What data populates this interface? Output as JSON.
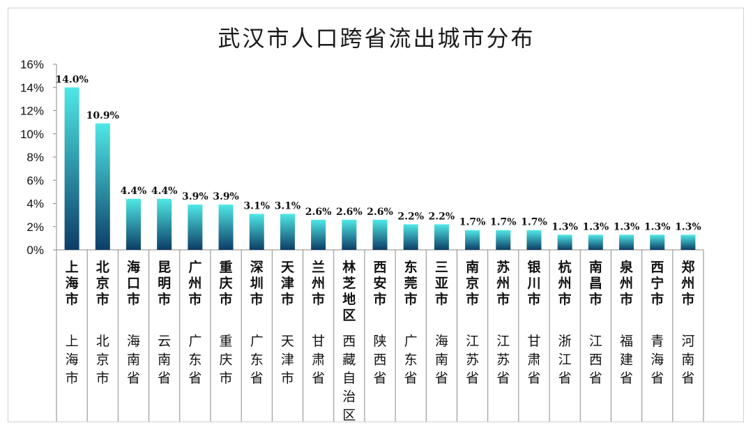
{
  "chart_data": {
    "type": "bar",
    "title": "武汉市人口跨省流出城市分布",
    "categories": [
      "上海市",
      "北京市",
      "海口市",
      "昆明市",
      "广州市",
      "重庆市",
      "深圳市",
      "天津市",
      "兰州市",
      "林芝地区",
      "西安市",
      "东莞市",
      "三亚市",
      "南京市",
      "苏州市",
      "银川市",
      "杭州市",
      "南昌市",
      "泉州市",
      "西宁市",
      "郑州市"
    ],
    "provinces": [
      "上海市",
      "北京市",
      "海南省",
      "云南省",
      "广东省",
      "重庆市",
      "广东省",
      "天津市",
      "甘肃省",
      "西藏自治区",
      "陕西省",
      "广东省",
      "海南省",
      "江苏省",
      "江苏省",
      "甘肃省",
      "浙江省",
      "江西省",
      "福建省",
      "青海省",
      "河南省"
    ],
    "values": [
      14.0,
      10.9,
      4.4,
      4.4,
      3.9,
      3.9,
      3.1,
      3.1,
      2.6,
      2.6,
      2.6,
      2.2,
      2.2,
      1.7,
      1.7,
      1.7,
      1.3,
      1.3,
      1.3,
      1.3,
      1.3
    ],
    "data_labels": [
      "14.0%",
      "10.9%",
      "4.4%",
      "4.4%",
      "3.9%",
      "3.9%",
      "3.1%",
      "3.1%",
      "2.6%",
      "2.6%",
      "2.6%",
      "2.2%",
      "2.2%",
      "1.7%",
      "1.7%",
      "1.7%",
      "1.3%",
      "1.3%",
      "1.3%",
      "1.3%",
      "1.3%"
    ],
    "yticks": [
      "0%",
      "2%",
      "4%",
      "6%",
      "8%",
      "10%",
      "12%",
      "14%",
      "16%"
    ],
    "ylim": [
      0,
      16
    ],
    "grid": false,
    "legend": "none",
    "colors": {
      "bar_top": "#4fe8e6",
      "bar_bottom": "#0c3d66",
      "axis": "#8a8a8a"
    }
  }
}
